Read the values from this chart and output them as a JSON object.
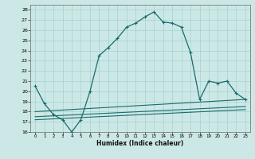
{
  "xlabel": "Humidex (Indice chaleur)",
  "bg_color": "#cce8e6",
  "grid_color": "#99ccc9",
  "line_color": "#1a6b6b",
  "xlim": [
    -0.5,
    23.5
  ],
  "ylim": [
    16,
    28.5
  ],
  "xticks": [
    0,
    1,
    2,
    3,
    4,
    5,
    6,
    7,
    8,
    9,
    10,
    11,
    12,
    13,
    14,
    15,
    16,
    17,
    18,
    19,
    20,
    21,
    22,
    23
  ],
  "yticks": [
    16,
    17,
    18,
    19,
    20,
    21,
    22,
    23,
    24,
    25,
    26,
    27,
    28
  ],
  "series1_x": [
    0,
    1,
    2,
    3,
    4,
    5,
    6,
    7,
    8,
    9,
    10,
    11,
    12,
    13,
    14,
    15,
    16,
    17,
    18,
    19,
    20,
    21,
    22,
    23
  ],
  "series1_y": [
    20.5,
    18.8,
    17.7,
    17.2,
    16.0,
    17.2,
    20.0,
    23.5,
    24.3,
    25.2,
    26.3,
    26.7,
    27.3,
    27.8,
    26.8,
    26.7,
    26.3,
    23.8,
    19.2,
    21.0,
    20.8,
    21.0,
    19.8,
    19.2
  ],
  "series2_x": [
    0,
    23
  ],
  "series2_y": [
    18.0,
    19.2
  ],
  "series3_x": [
    0,
    23
  ],
  "series3_y": [
    17.5,
    18.5
  ],
  "series4_x": [
    0,
    23
  ],
  "series4_y": [
    17.2,
    18.2
  ]
}
